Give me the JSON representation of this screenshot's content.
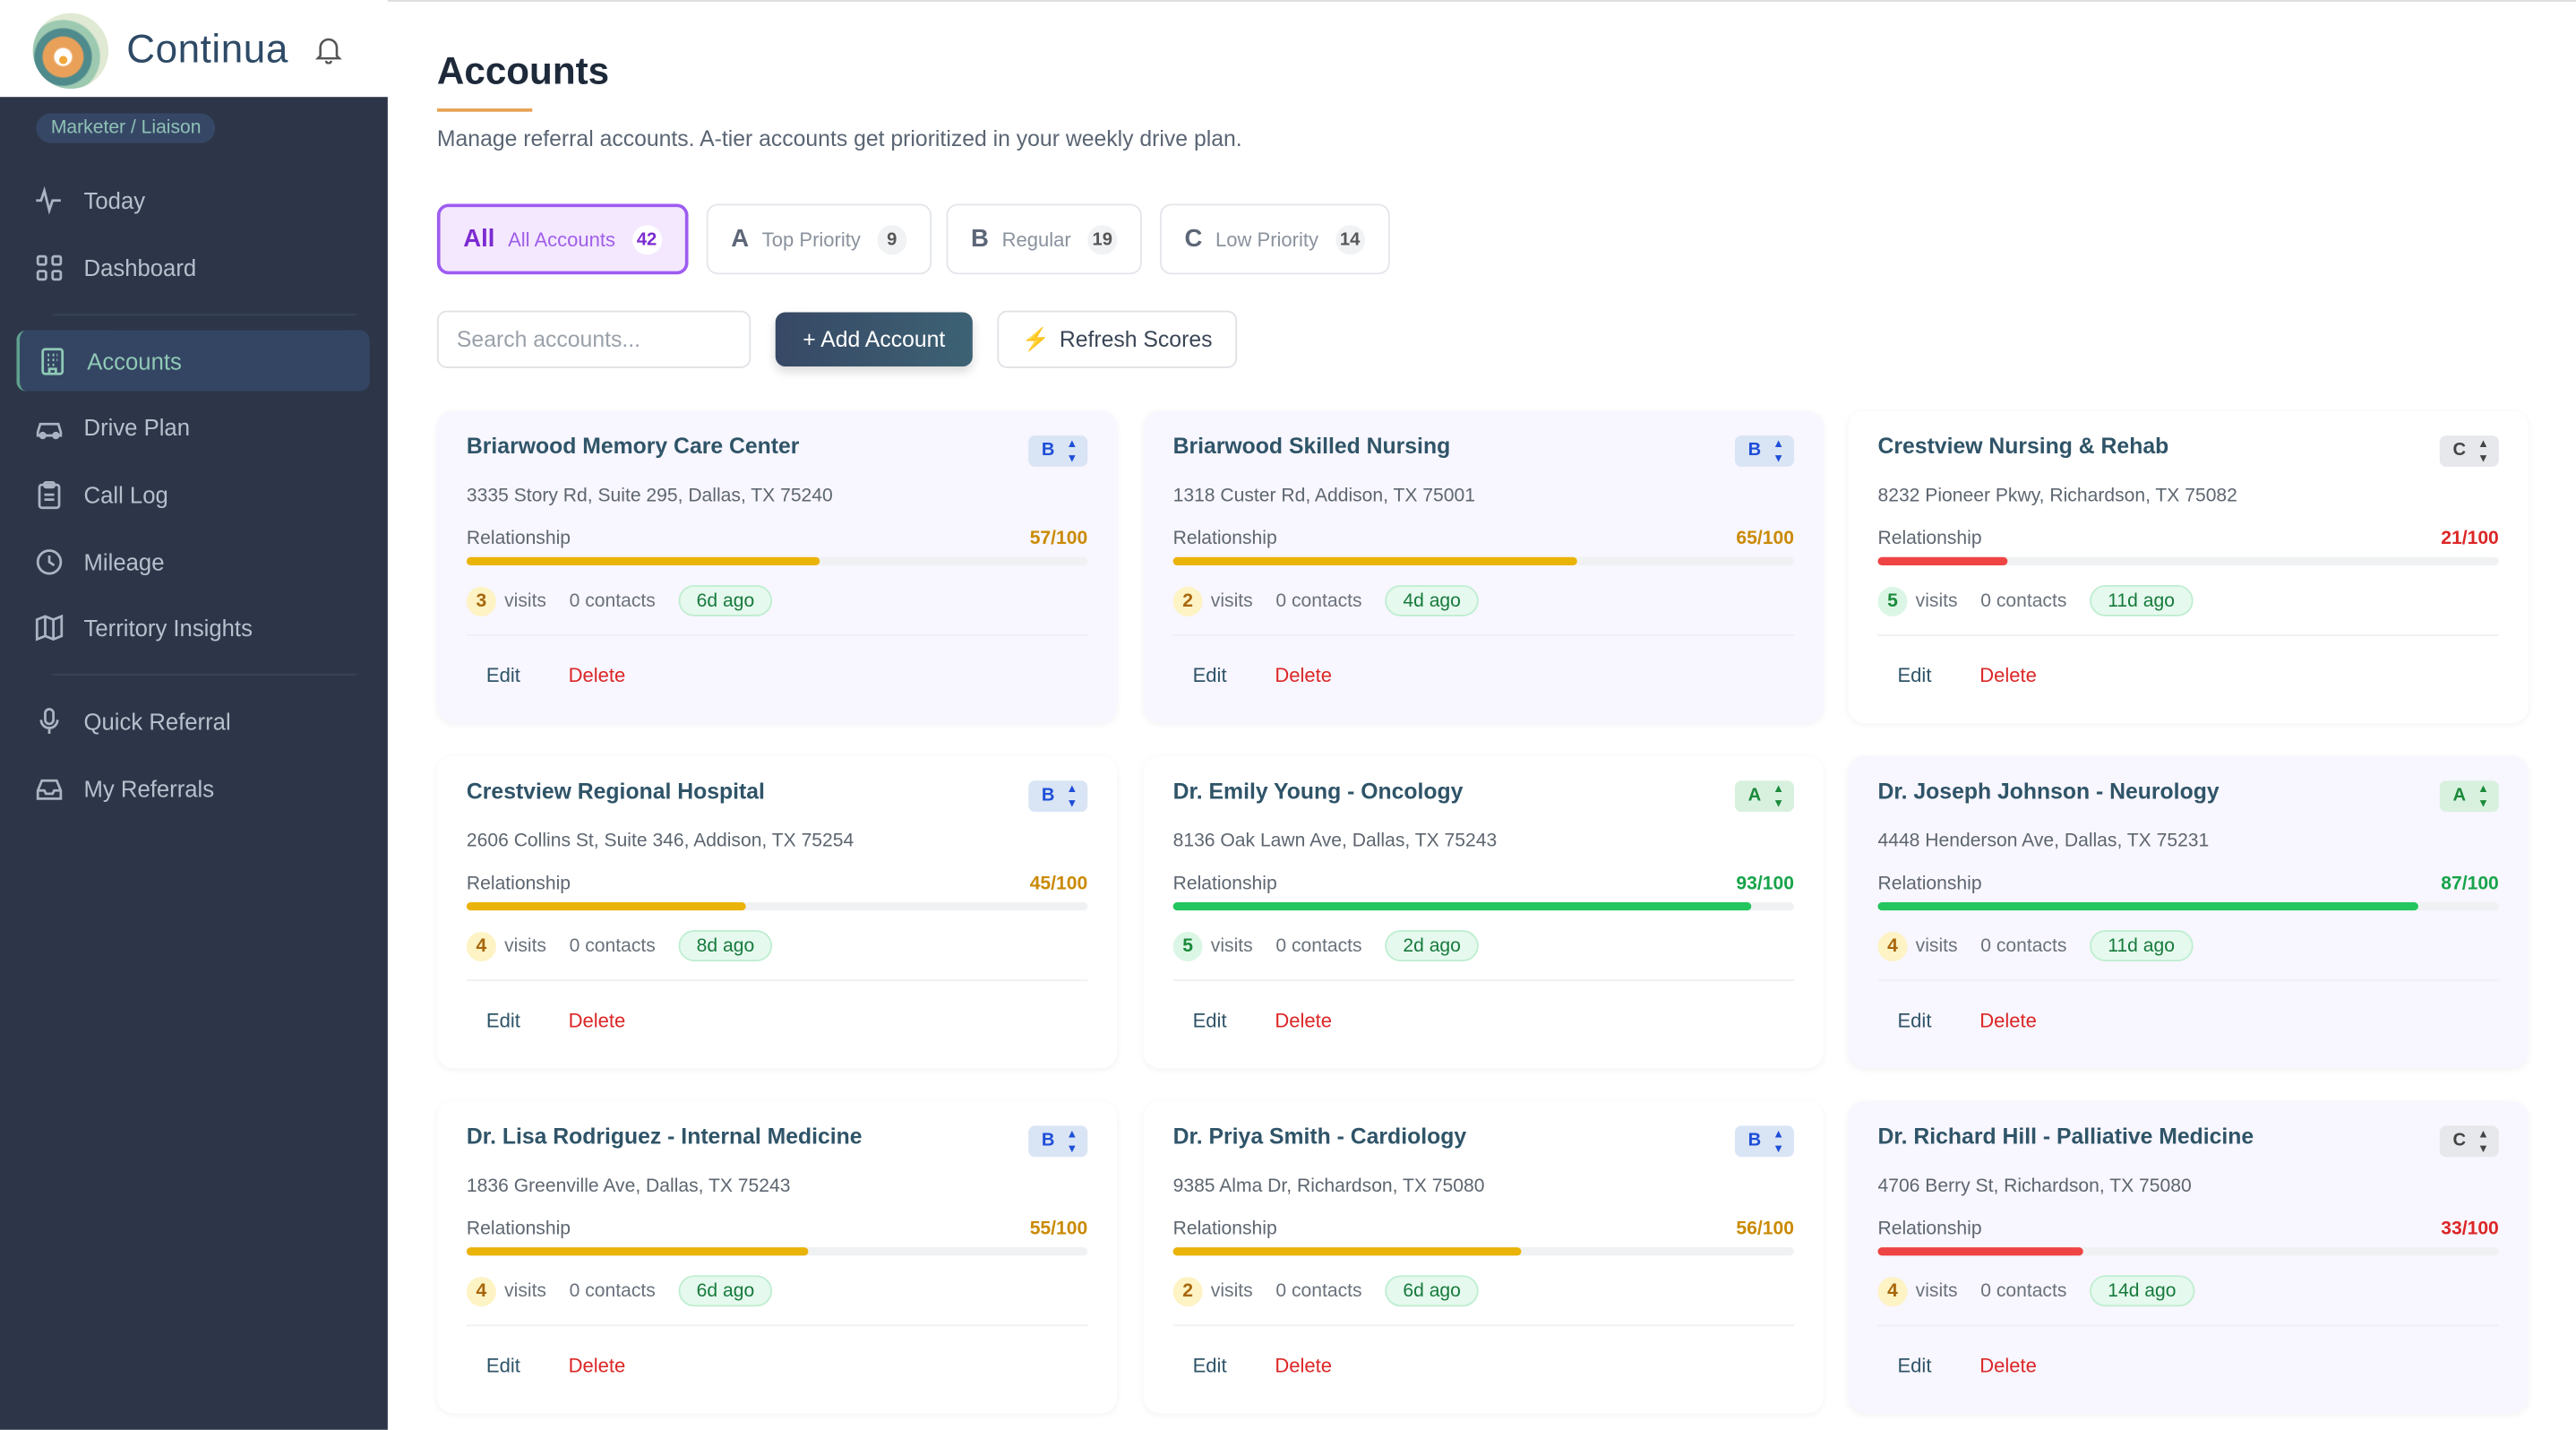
{
  "app": {
    "name": "Continua",
    "role": "Marketer / Liaison"
  },
  "sidebar": {
    "items": [
      {
        "label": "Today",
        "icon": "activity-icon"
      },
      {
        "label": "Dashboard",
        "icon": "grid-icon"
      },
      {
        "label": "Accounts",
        "icon": "building-icon",
        "active": true
      },
      {
        "label": "Drive Plan",
        "icon": "car-icon"
      },
      {
        "label": "Call Log",
        "icon": "clipboard-icon"
      },
      {
        "label": "Mileage",
        "icon": "clock-icon"
      },
      {
        "label": "Territory Insights",
        "icon": "map-icon"
      },
      {
        "label": "Quick Referral",
        "icon": "mic-icon"
      },
      {
        "label": "My Referrals",
        "icon": "inbox-icon"
      }
    ]
  },
  "page": {
    "title": "Accounts",
    "subtitle": "Manage referral accounts. A-tier accounts get prioritized in your weekly drive plan."
  },
  "tabs": [
    {
      "letter": "All",
      "label": "All Accounts",
      "count": "42",
      "active": true
    },
    {
      "letter": "A",
      "label": "Top Priority",
      "count": "9"
    },
    {
      "letter": "B",
      "label": "Regular",
      "count": "19"
    },
    {
      "letter": "C",
      "label": "Low Priority",
      "count": "14"
    }
  ],
  "toolbar": {
    "search_placeholder": "Search accounts...",
    "search_value": "",
    "add_label": "+ Add Account",
    "refresh_label": "Refresh Scores"
  },
  "card_labels": {
    "relationship": "Relationship",
    "visits": "visits",
    "edit": "Edit",
    "delete": "Delete"
  },
  "colors": {
    "red": "#ef4444",
    "yellow": "#eab308",
    "green": "#22c55e",
    "accent": "#9d5cf0"
  },
  "accounts": [
    {
      "name": "Briarwood Memory Care Center",
      "tier": "B",
      "address": "3335 Story Rd, Suite 295, Dallas, TX 75240",
      "score": 57,
      "score_text": "57/100",
      "visits": "3",
      "contacts": "0 contacts",
      "last": "6d ago"
    },
    {
      "name": "Briarwood Skilled Nursing",
      "tier": "B",
      "address": "1318 Custer Rd, Addison, TX 75001",
      "score": 65,
      "score_text": "65/100",
      "visits": "2",
      "contacts": "0 contacts",
      "last": "4d ago"
    },
    {
      "name": "Crestview Nursing & Rehab",
      "tier": "C",
      "address": "8232 Pioneer Pkwy, Richardson, TX 75082",
      "score": 21,
      "score_text": "21/100",
      "visits": "5",
      "contacts": "0 contacts",
      "last": "11d ago"
    },
    {
      "name": "Crestview Regional Hospital",
      "tier": "B",
      "address": "2606 Collins St, Suite 346, Addison, TX 75254",
      "score": 45,
      "score_text": "45/100",
      "visits": "4",
      "contacts": "0 contacts",
      "last": "8d ago"
    },
    {
      "name": "Dr. Emily Young - Oncology",
      "tier": "A",
      "address": "8136 Oak Lawn Ave, Dallas, TX 75243",
      "score": 93,
      "score_text": "93/100",
      "visits": "5",
      "contacts": "0 contacts",
      "last": "2d ago"
    },
    {
      "name": "Dr. Joseph Johnson - Neurology",
      "tier": "A",
      "address": "4448 Henderson Ave, Dallas, TX 75231",
      "score": 87,
      "score_text": "87/100",
      "visits": "4",
      "contacts": "0 contacts",
      "last": "11d ago"
    },
    {
      "name": "Dr. Lisa Rodriguez - Internal Medicine",
      "tier": "B",
      "address": "1836 Greenville Ave, Dallas, TX 75243",
      "score": 55,
      "score_text": "55/100",
      "visits": "4",
      "contacts": "0 contacts",
      "last": "6d ago"
    },
    {
      "name": "Dr. Priya Smith - Cardiology",
      "tier": "B",
      "address": "9385 Alma Dr, Richardson, TX 75080",
      "score": 56,
      "score_text": "56/100",
      "visits": "2",
      "contacts": "0 contacts",
      "last": "6d ago"
    },
    {
      "name": "Dr. Richard Hill - Palliative Medicine",
      "tier": "C",
      "address": "4706 Berry St, Richardson, TX 75080",
      "score": 33,
      "score_text": "33/100",
      "visits": "4",
      "contacts": "0 contacts",
      "last": "14d ago"
    }
  ]
}
